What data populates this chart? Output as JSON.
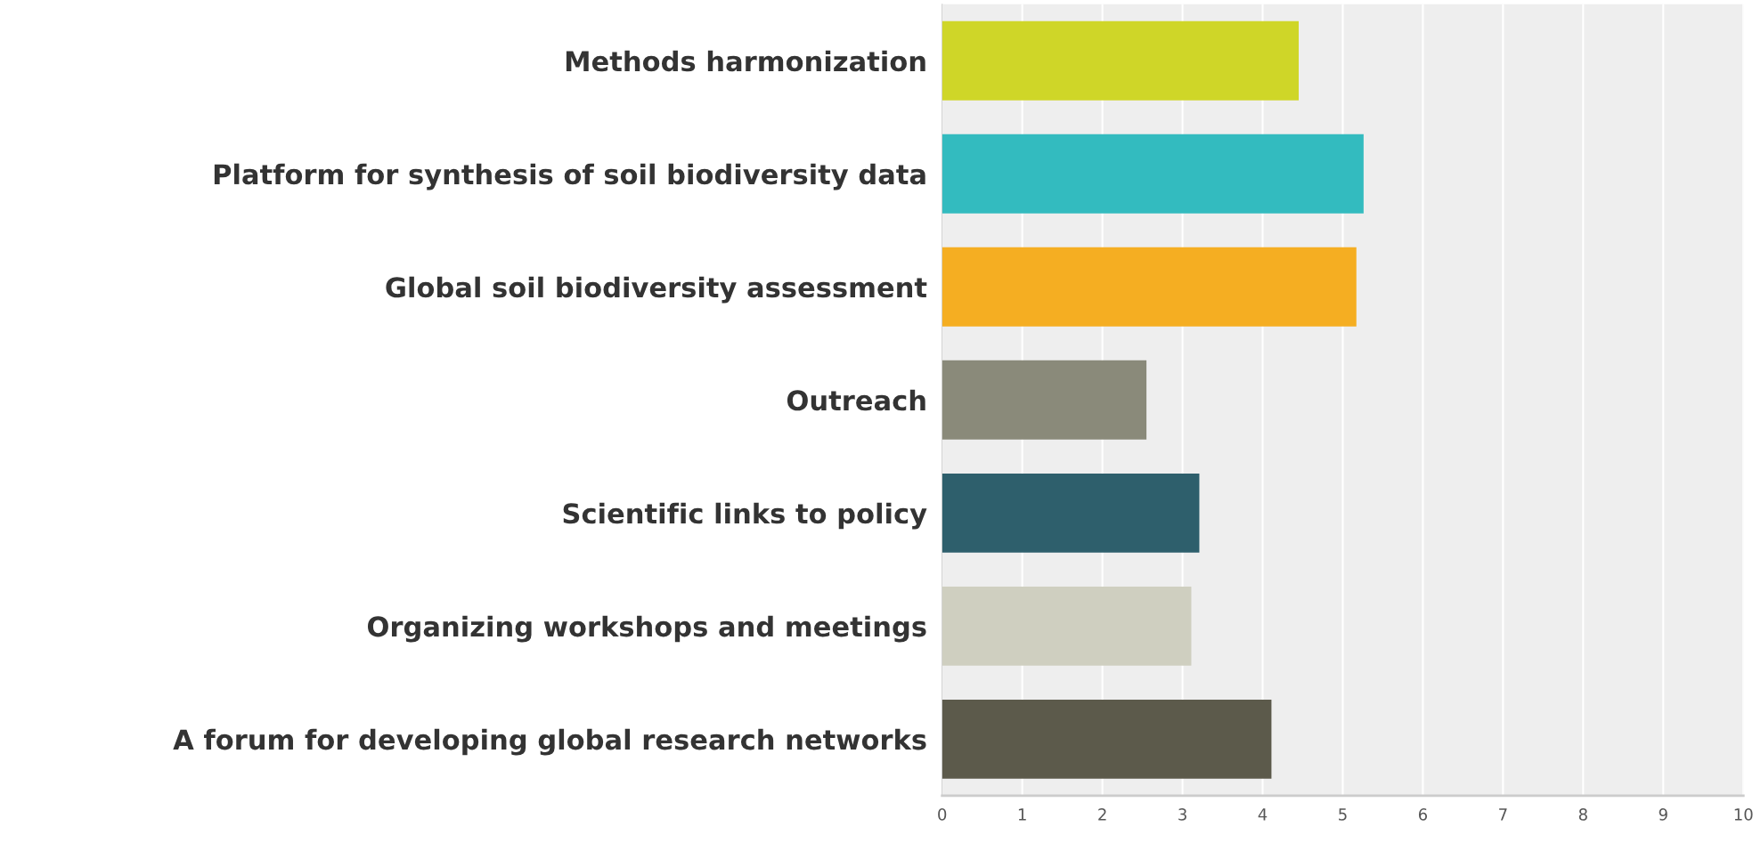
{
  "chart_data": {
    "type": "bar",
    "orientation": "horizontal",
    "categories": [
      "Methods harmonization",
      "Platform for synthesis of soil biodiversity data",
      "Global soil biodiversity assessment",
      "Outreach",
      "Scientific links to policy",
      "Organizing workshops and meetings",
      "A forum for developing global research networks"
    ],
    "values": [
      4.45,
      5.26,
      5.17,
      2.55,
      3.21,
      3.11,
      4.11
    ],
    "colors": [
      "#cfd628",
      "#33bbbf",
      "#f5ae22",
      "#8a8a7a",
      "#2e5f6c",
      "#cfcfc0",
      "#5c5a4b"
    ],
    "xlim": [
      0,
      10
    ],
    "xticks": [
      0,
      1,
      2,
      3,
      4,
      5,
      6,
      7,
      8,
      9,
      10
    ],
    "grid": "x"
  }
}
